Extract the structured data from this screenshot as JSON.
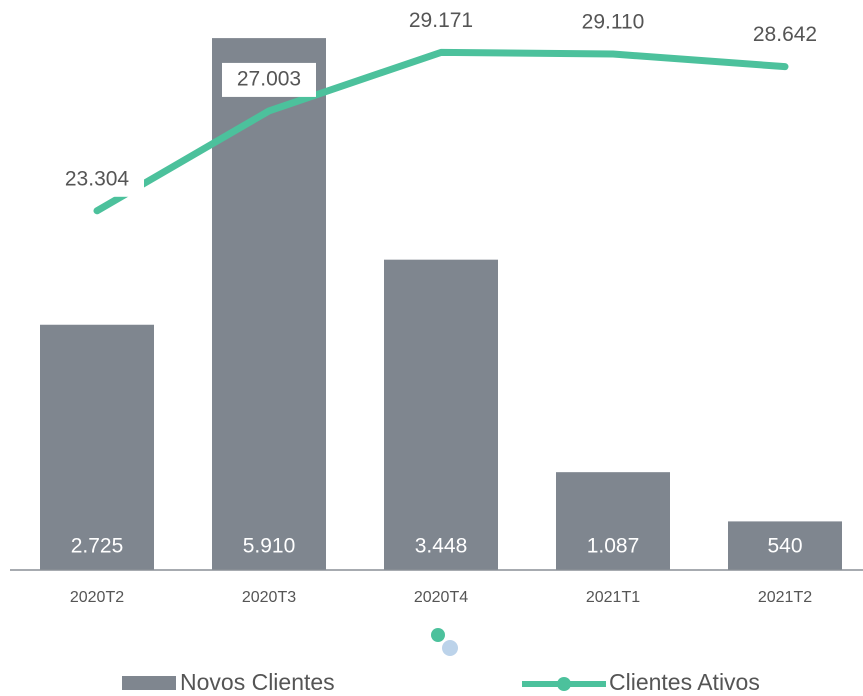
{
  "chart_data": {
    "type": "bar-line",
    "categories": [
      "2020T2",
      "2020T3",
      "2020T4",
      "2021T1",
      "2021T2"
    ],
    "series": [
      {
        "name": "Novos Clientes",
        "type": "bar",
        "color": "#7f868f",
        "values": [
          2725,
          5910,
          3448,
          1087,
          540
        ],
        "value_labels": [
          "2.725",
          "5.910",
          "3.448",
          "1.087",
          "540"
        ]
      },
      {
        "name": "Clientes Ativos",
        "type": "line",
        "axis": "y2",
        "color": "#4cc19c",
        "values": [
          23304,
          27003,
          29171,
          29110,
          28642
        ],
        "value_labels": [
          "23.304",
          "27.003",
          "29.171",
          "29.110",
          "28.642"
        ]
      }
    ],
    "ylim": [
      0,
      6000
    ],
    "y2lim": [
      10000,
      30000
    ],
    "legend": "bottom"
  }
}
